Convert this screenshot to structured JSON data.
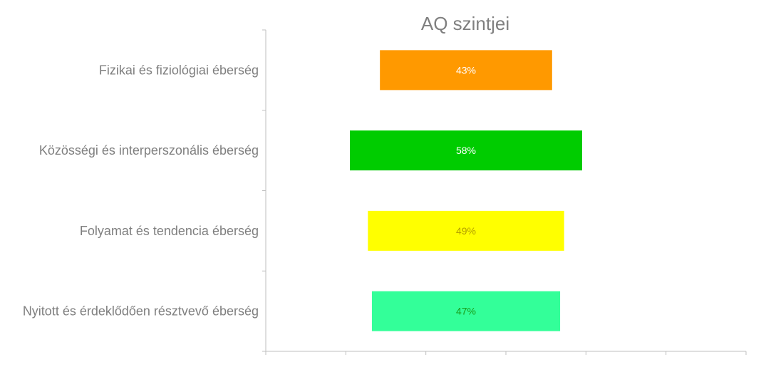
{
  "chart_data": {
    "type": "bar",
    "orientation": "horizontal",
    "layout": "centered-funnel",
    "title": "AQ szintjei",
    "xlabel": "",
    "ylabel": "",
    "xlim": [
      0,
      100
    ],
    "grid": false,
    "legend": "none",
    "categories": [
      "Fizikai és fiziológiai éberség",
      "Közösségi és interperszonális éberség",
      "Folyamat és tendencia éberség",
      "Nyitott és érdeklődően résztvevő éberség"
    ],
    "values": [
      43,
      58,
      49,
      47
    ],
    "value_labels": [
      "43%",
      "58%",
      "49%",
      "47%"
    ],
    "colors": [
      "#ff9900",
      "#00cc00",
      "#ffff00",
      "#33ff99"
    ],
    "label_colors": [
      "#ffffff",
      "#ffffff",
      "#b3a000",
      "#1a9e1a"
    ]
  }
}
